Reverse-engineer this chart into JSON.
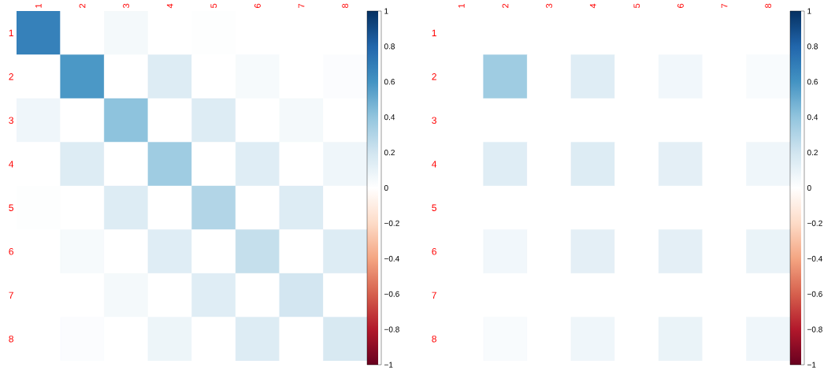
{
  "chart_data": [
    {
      "type": "heatmap",
      "categories": [
        "1",
        "2",
        "3",
        "4",
        "5",
        "6",
        "7",
        "8"
      ],
      "y_categories": [
        "1",
        "2",
        "3",
        "4",
        "5",
        "6",
        "7",
        "8"
      ],
      "cells": [
        [
          0.68,
          0,
          0.05,
          0,
          0.01,
          0,
          0,
          0
        ],
        [
          0,
          0.58,
          0,
          0.15,
          0,
          0.04,
          0,
          0.02
        ],
        [
          0.07,
          0,
          0.41,
          0,
          0.15,
          0,
          0.05,
          0
        ],
        [
          0,
          0.15,
          0,
          0.36,
          0,
          0.14,
          0,
          0.07
        ],
        [
          0.01,
          0,
          0.15,
          0,
          0.3,
          0,
          0.15,
          0
        ],
        [
          0,
          0.04,
          0,
          0.14,
          0,
          0.24,
          0,
          0.15
        ],
        [
          0,
          0,
          0.05,
          0,
          0.14,
          0,
          0.19,
          0
        ],
        [
          0,
          0.02,
          0,
          0.08,
          0,
          0.15,
          0,
          0.17
        ]
      ],
      "clim": [
        -1,
        1
      ],
      "cticks": [
        {
          "value": -1,
          "label": "−1"
        },
        {
          "value": -0.8,
          "label": "−0.8"
        },
        {
          "value": -0.6,
          "label": "−0.6"
        },
        {
          "value": -0.4,
          "label": "−0.4"
        },
        {
          "value": -0.2,
          "label": "−0.2"
        },
        0,
        0.2,
        0.4,
        0.6,
        0.8,
        1
      ]
    },
    {
      "type": "heatmap",
      "categories": [
        "1",
        "2",
        "3",
        "4",
        "5",
        "6",
        "7",
        "8"
      ],
      "y_categories": [
        "1",
        "2",
        "3",
        "4",
        "5",
        "6",
        "7",
        "8"
      ],
      "cells": [
        [
          0,
          0,
          0,
          0,
          0,
          0,
          0,
          0
        ],
        [
          0,
          0.36,
          0,
          0.14,
          0,
          0.06,
          0,
          0.03
        ],
        [
          0,
          0,
          0,
          0,
          0,
          0,
          0,
          0
        ],
        [
          0,
          0.14,
          0,
          0.15,
          0,
          0.12,
          0,
          0.07
        ],
        [
          0,
          0,
          0,
          0,
          0,
          0,
          0,
          0
        ],
        [
          0,
          0.06,
          0,
          0.12,
          0,
          0.12,
          0,
          0.09
        ],
        [
          0,
          0,
          0,
          0,
          0,
          0,
          0,
          0
        ],
        [
          0,
          0.03,
          0,
          0.07,
          0,
          0.09,
          0,
          0.07
        ]
      ],
      "clim": [
        -1,
        1
      ],
      "cticks": [
        {
          "value": -1,
          "label": "−1"
        },
        {
          "value": -0.8,
          "label": "−0.8"
        },
        {
          "value": -0.6,
          "label": "−0.6"
        },
        {
          "value": -0.4,
          "label": "−0.4"
        },
        {
          "value": -0.2,
          "label": "−0.2"
        },
        0,
        0.2,
        0.4,
        0.6,
        0.8,
        1
      ]
    }
  ]
}
